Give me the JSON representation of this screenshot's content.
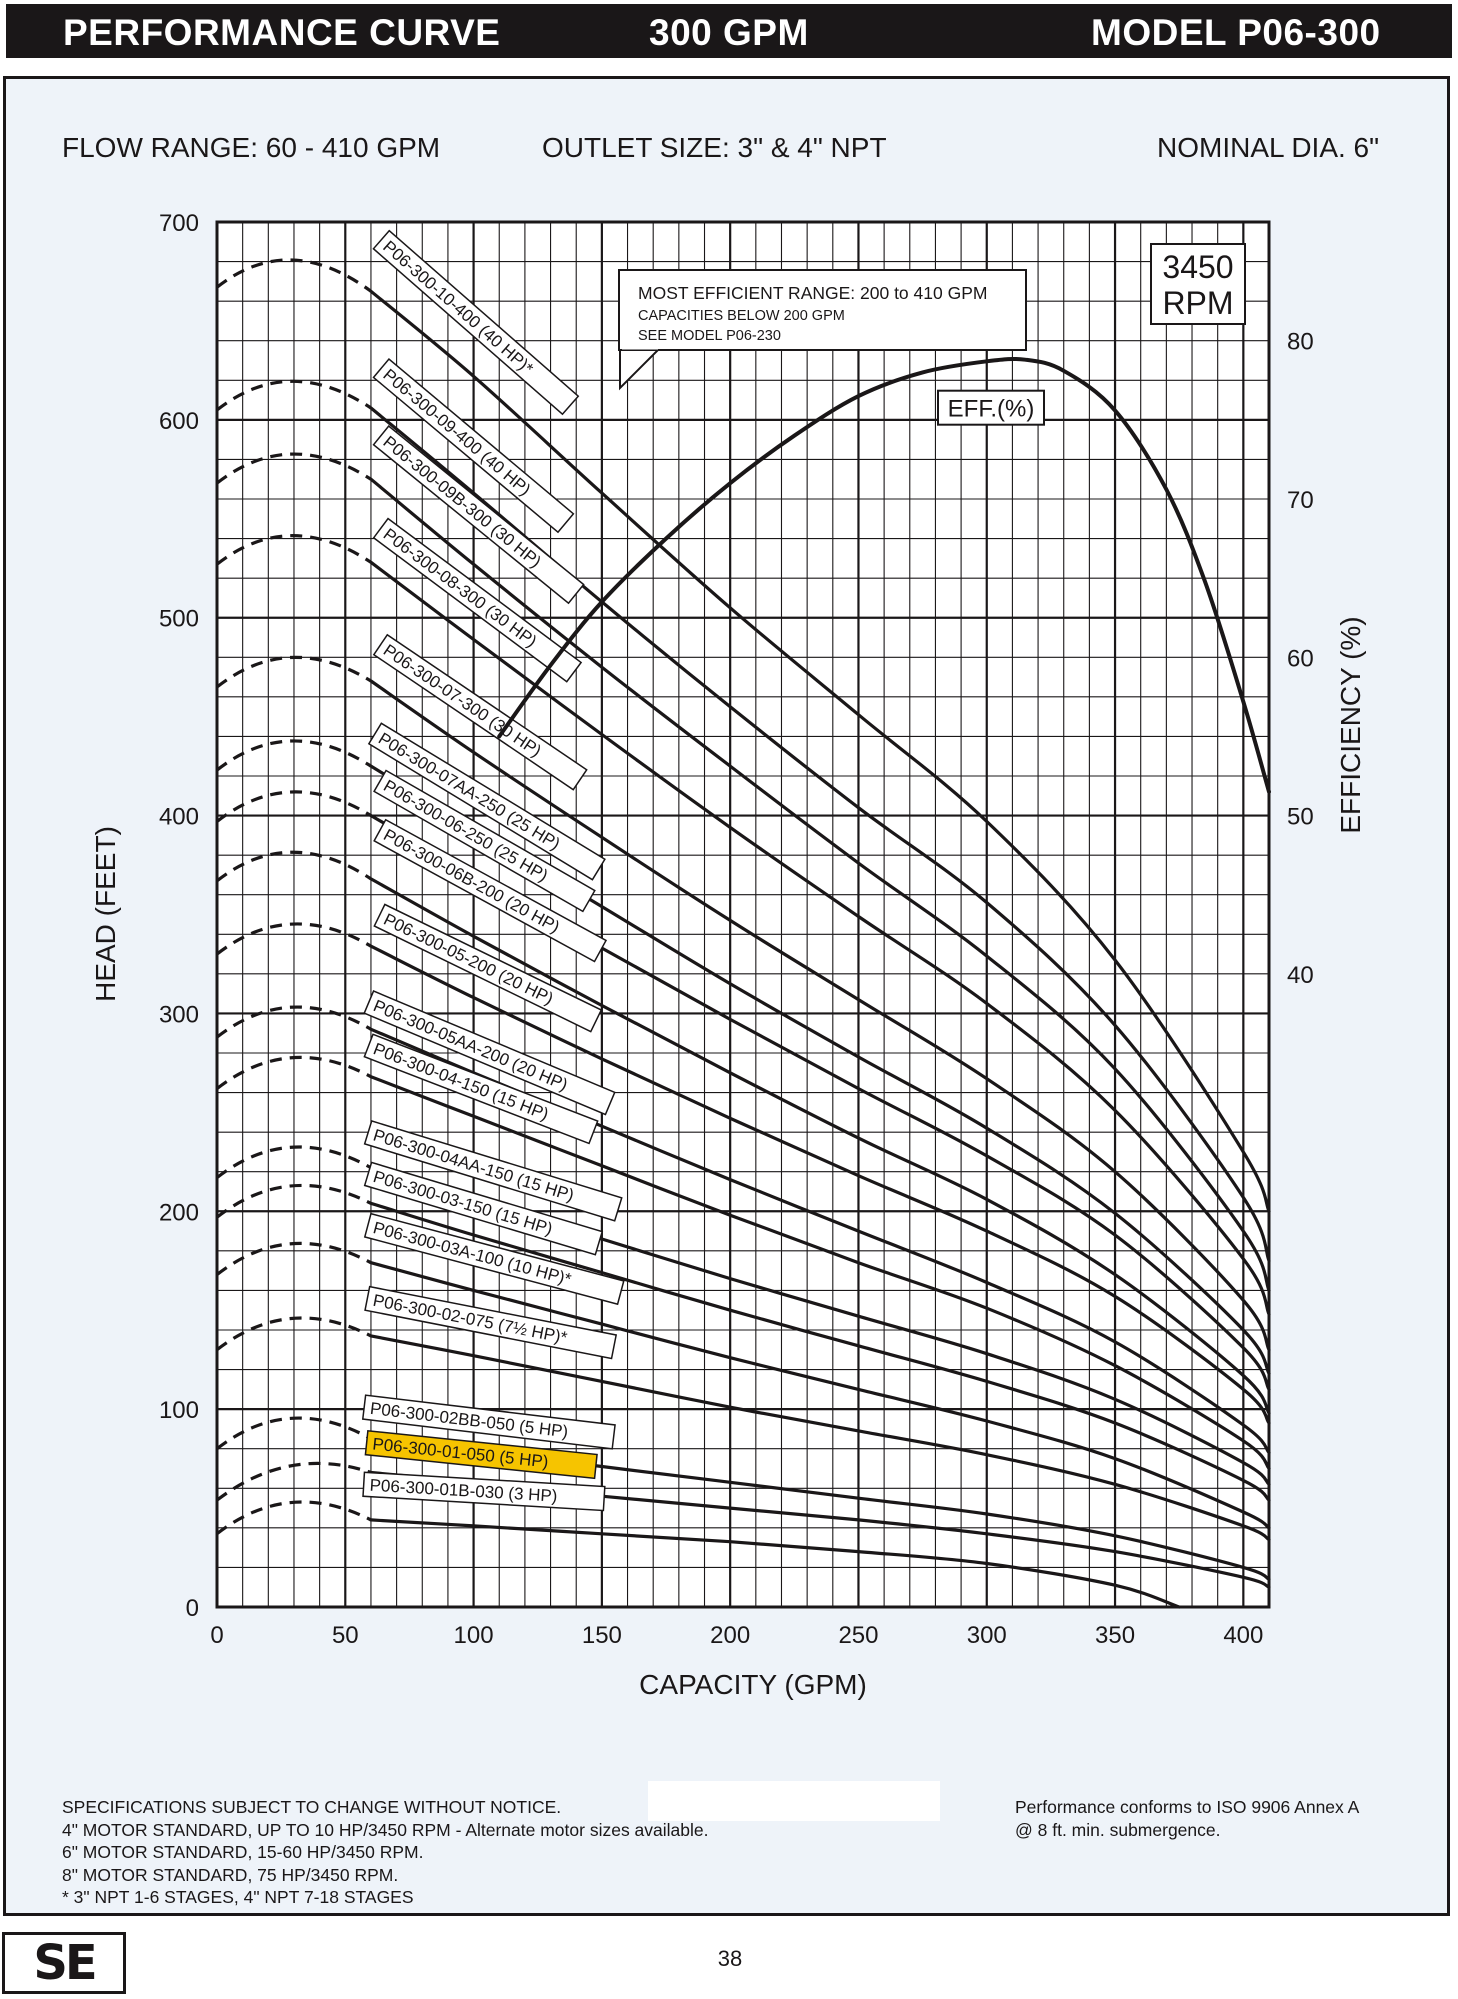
{
  "header": {
    "left": "PERFORMANCE CURVE",
    "center": "300 GPM",
    "right": "MODEL  P06-300"
  },
  "info": {
    "flow_range": "FLOW RANGE: 60 - 410 GPM",
    "outlet_size": "OUTLET SIZE: 3\" & 4\" NPT",
    "nominal_dia": "NOMINAL DIA. 6\""
  },
  "notes": {
    "lines": [
      "SPECIFICATIONS SUBJECT TO CHANGE WITHOUT NOTICE.",
      "4\" MOTOR STANDARD, UP TO 10 HP/3450 RPM - Alternate motor sizes available.",
      "6\" MOTOR STANDARD, 15-60 HP/3450 RPM.",
      "8\" MOTOR STANDARD, 75 HP/3450 RPM.",
      "* 3\" NPT 1-6 STAGES, 4\" NPT 7-18 STAGES"
    ],
    "iso_lines": [
      "Performance conforms to ISO 9906 Annex A",
      "@ 8 ft. min. submergence."
    ]
  },
  "footer": {
    "logo_text": "SE",
    "page_number": "38"
  },
  "chart_data": {
    "type": "line",
    "title": "",
    "xlabel": "CAPACITY (GPM)",
    "ylabel": "HEAD (FEET)",
    "y2label": "EFFICIENCY (%)",
    "xlim": [
      0,
      410
    ],
    "ylim": [
      0,
      700
    ],
    "y2lim": [
      0,
      87.5
    ],
    "x_ticks": [
      0,
      50,
      100,
      150,
      200,
      250,
      300,
      350,
      400
    ],
    "y_ticks": [
      0,
      100,
      200,
      300,
      400,
      500,
      600,
      700
    ],
    "y2_ticks": [
      40,
      50,
      60,
      70,
      80
    ],
    "grid": true,
    "rpm_box": [
      "3450",
      "RPM"
    ],
    "note_box": [
      "MOST EFFICIENT RANGE: 200 to 410 GPM",
      "CAPACITIES BELOW 200 GPM",
      "SEE  MODEL P06-230"
    ],
    "efficiency": {
      "label": "EFF.(%)",
      "x": [
        110,
        130,
        150,
        175,
        200,
        225,
        250,
        275,
        300,
        315,
        330,
        350,
        370,
        385,
        400,
        410
      ],
      "y": [
        55,
        59.5,
        63.5,
        67.5,
        71,
        74,
        76.5,
        78,
        78.7,
        78.8,
        78.1,
        75.6,
        70.6,
        64.8,
        57.2,
        51.5
      ]
    },
    "highlight_color": "#f6c400",
    "series": [
      {
        "name": "P06-300-10-400 (40 HP)*",
        "x": [
          60,
          100,
          150,
          200,
          250,
          300,
          350,
          400,
          410
        ],
        "y": [
          665,
          622,
          563,
          505,
          451,
          397,
          327,
          230,
          200
        ],
        "shutoff": 677,
        "label_at": [
          62,
          688
        ],
        "highlight": false
      },
      {
        "name": "P06-300-09-400 (40 HP)",
        "x": [
          60,
          100,
          150,
          200,
          250,
          300,
          350,
          400,
          410
        ],
        "y": [
          606,
          563,
          508,
          455,
          404,
          356,
          294,
          207,
          175
        ],
        "shutoff": 615,
        "label_at": [
          62,
          623
        ],
        "highlight": false
      },
      {
        "name": "P06-300-09B-300 (30 HP)",
        "x": [
          60,
          100,
          150,
          200,
          250,
          300,
          350,
          400,
          410
        ],
        "y": [
          570,
          527,
          475,
          425,
          376,
          329,
          272,
          190,
          160
        ],
        "shutoff": 578,
        "label_at": [
          62,
          589
        ],
        "highlight": false
      },
      {
        "name": "P06-300-08-300 (30 HP)",
        "x": [
          60,
          100,
          150,
          200,
          250,
          300,
          350,
          400,
          410
        ],
        "y": [
          528,
          489,
          441,
          394,
          349,
          305,
          251,
          176,
          148
        ],
        "shutoff": 537,
        "label_at": [
          62,
          542
        ],
        "highlight": false
      },
      {
        "name": "P06-300-07-300 (30 HP)",
        "x": [
          60,
          100,
          150,
          200,
          250,
          300,
          350,
          400,
          410
        ],
        "y": [
          468,
          432,
          389,
          347,
          307,
          267,
          220,
          155,
          130
        ],
        "shutoff": 475,
        "label_at": [
          62,
          483
        ],
        "highlight": false
      },
      {
        "name": "P06-300-07AA-250 (25 HP)",
        "x": [
          60,
          100,
          150,
          200,
          250,
          300,
          350,
          400,
          410
        ],
        "y": [
          425,
          393,
          354,
          315,
          278,
          242,
          199,
          140,
          118
        ],
        "shutoff": 433,
        "label_at": [
          60,
          438
        ],
        "highlight": false
      },
      {
        "name": "P06-300-06-250 (25 HP)",
        "x": [
          60,
          100,
          150,
          200,
          250,
          300,
          350,
          400,
          410
        ],
        "y": [
          400,
          370,
          333,
          297,
          262,
          228,
          188,
          131,
          110
        ],
        "shutoff": 407,
        "label_at": [
          62,
          414
        ],
        "highlight": false
      },
      {
        "name": "P06-300-06B-200 (20 HP)",
        "x": [
          60,
          100,
          150,
          200,
          250,
          300,
          350,
          400,
          410
        ],
        "y": [
          368,
          339,
          304,
          270,
          237,
          206,
          168,
          117,
          98
        ],
        "shutoff": 377,
        "label_at": [
          62,
          389
        ],
        "highlight": false
      },
      {
        "name": "P06-300-05-200 (20 HP)",
        "x": [
          60,
          100,
          150,
          200,
          250,
          300,
          350,
          400,
          410
        ],
        "y": [
          334,
          308,
          277,
          247,
          218,
          190,
          157,
          110,
          93
        ],
        "shutoff": 340,
        "label_at": [
          62,
          346
        ],
        "highlight": false
      },
      {
        "name": "P06-300-05AA-200 (20 HP)",
        "x": [
          60,
          100,
          150,
          200,
          250,
          300,
          350,
          400,
          410
        ],
        "y": [
          292,
          270,
          243,
          216,
          190,
          164,
          134,
          92,
          78
        ],
        "shutoff": 298,
        "label_at": [
          58,
          302
        ],
        "highlight": false
      },
      {
        "name": "P06-300-04-150 (15 HP)",
        "x": [
          60,
          100,
          150,
          200,
          250,
          300,
          350,
          400,
          410
        ],
        "y": [
          268,
          248,
          223,
          198,
          174,
          151,
          122,
          84,
          70
        ],
        "shutoff": 272,
        "label_at": [
          58,
          280
        ],
        "highlight": false
      },
      {
        "name": "P06-300-04AA-150 (15 HP)",
        "x": [
          60,
          100,
          150,
          200,
          250,
          300,
          350,
          400,
          410
        ],
        "y": [
          222,
          206,
          186,
          166,
          147,
          128,
          105,
          73,
          62
        ],
        "shutoff": 227,
        "label_at": [
          58,
          236
        ],
        "highlight": false
      },
      {
        "name": "P06-300-03-150 (15 HP)",
        "x": [
          60,
          100,
          150,
          200,
          250,
          300,
          350,
          400,
          410
        ],
        "y": [
          204,
          188,
          169,
          150,
          132,
          114,
          93,
          64,
          54
        ],
        "shutoff": 207,
        "label_at": [
          58,
          215
        ],
        "highlight": false
      },
      {
        "name": "P06-300-03A-100 (10 HP)*",
        "x": [
          60,
          100,
          150,
          200,
          250,
          300,
          350,
          400,
          410
        ],
        "y": [
          174,
          160,
          143,
          126,
          110,
          94,
          75,
          48,
          40
        ],
        "shutoff": 178,
        "label_at": [
          58,
          189
        ],
        "highlight": false
      },
      {
        "name": "P06-300-02-075 (7½ HP)*",
        "x": [
          60,
          100,
          150,
          200,
          250,
          300,
          350,
          400,
          410
        ],
        "y": [
          137,
          127,
          114,
          101,
          89,
          77,
          62,
          41,
          34
        ],
        "shutoff": 140,
        "label_at": [
          58,
          152
        ],
        "highlight": false
      },
      {
        "name": "P06-300-02BB-050 (5 HP)",
        "x": [
          60,
          100,
          150,
          200,
          250,
          300,
          350,
          400,
          410
        ],
        "y": [
          85,
          79,
          71,
          63,
          55,
          47,
          36,
          20,
          14
        ],
        "shutoff": 90,
        "label_at": [
          57,
          97
        ],
        "highlight": false
      },
      {
        "name": "P06-300-01-050 (5 HP)",
        "x": [
          60,
          100,
          150,
          200,
          250,
          300,
          350,
          400,
          410
        ],
        "y": [
          68,
          63,
          56,
          50,
          44,
          37,
          28,
          15,
          10
        ],
        "shutoff": 64,
        "label_at": [
          58,
          79
        ],
        "highlight": true
      },
      {
        "name": "P06-300-01B-030 (3 HP)",
        "x": [
          60,
          100,
          150,
          200,
          250,
          300,
          350,
          375
        ],
        "y": [
          44,
          41,
          37,
          33,
          28,
          22,
          11,
          0
        ],
        "shutoff": 47,
        "label_at": [
          57,
          58
        ],
        "highlight": false
      }
    ]
  }
}
